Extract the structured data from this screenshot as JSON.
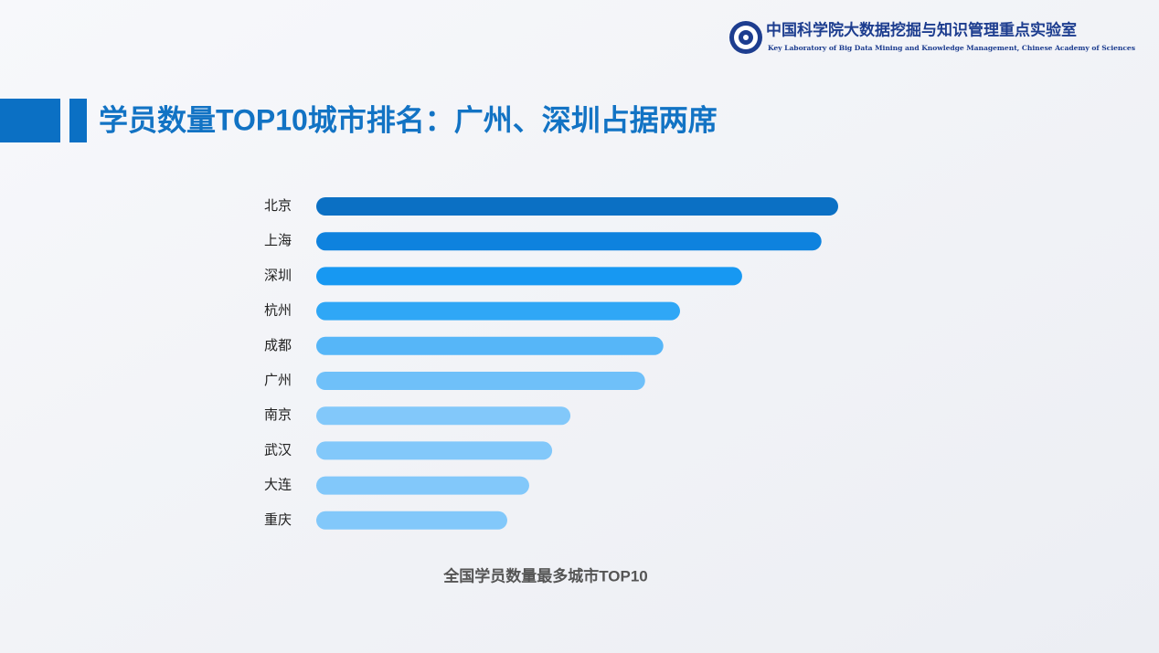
{
  "header": {
    "org_cn": "中国科学院大数据挖掘与知识管理重点实验室",
    "org_en": "Key Laboratory of Big Data Mining and Knowledge Management, Chinese Academy of Sciences"
  },
  "slide_title": "学员数量TOP10城市排名：广州、深圳占据两席",
  "chart_data": {
    "type": "bar",
    "orientation": "horizontal",
    "title": "全国学员数量最多城市TOP10",
    "categories": [
      "北京",
      "上海",
      "深圳",
      "杭州",
      "成都",
      "广州",
      "南京",
      "武汉",
      "大连",
      "重庆"
    ],
    "values": [
      100,
      96.8,
      81.6,
      69.7,
      66.5,
      63,
      48.7,
      45.2,
      40.8,
      36.6
    ],
    "colors": [
      "#0b70c4",
      "#0e82de",
      "#1798f2",
      "#2fa7f6",
      "#56b6f8",
      "#6fc0f9",
      "#82c8fa",
      "#82c8fa",
      "#82c8fa",
      "#82c8fa"
    ],
    "xlim": [
      0,
      100
    ]
  }
}
